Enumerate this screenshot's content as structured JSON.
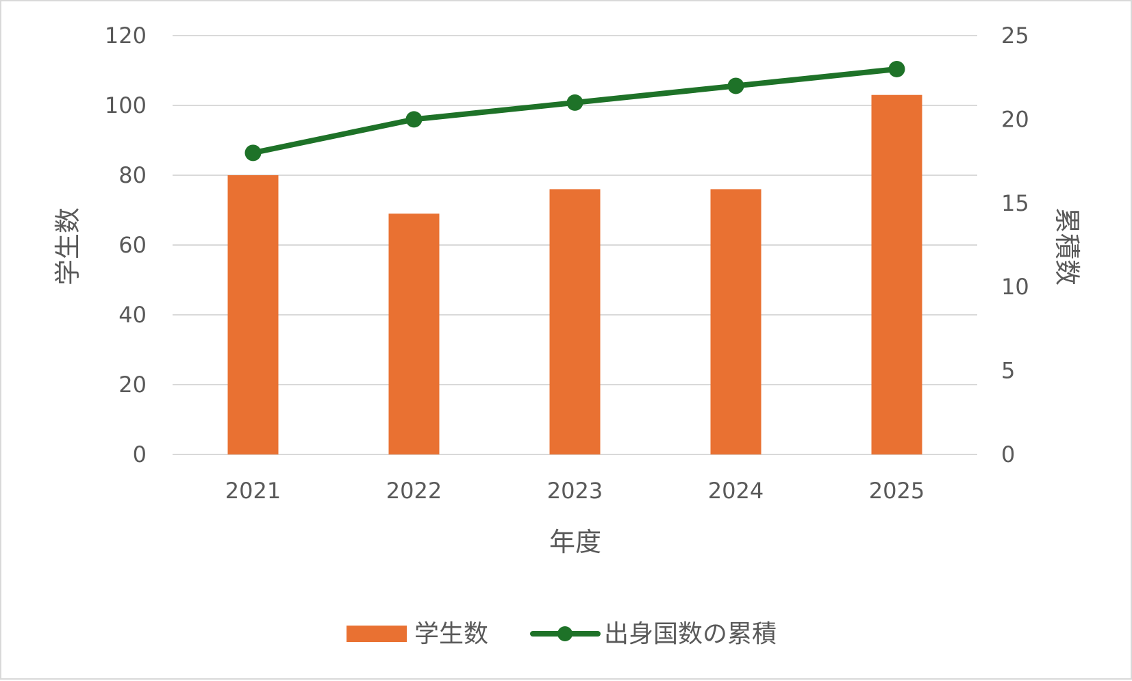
{
  "chart_data": {
    "type": "bar+line",
    "title": "",
    "categories": [
      "2021",
      "2022",
      "2023",
      "2024",
      "2025"
    ],
    "xlabel": "年度",
    "ylabel_left": "学生数",
    "ylabel_right": "累積数",
    "ylim_left": [
      0,
      120
    ],
    "ylim_right": [
      0,
      25
    ],
    "yticks_left": [
      "0",
      "20",
      "40",
      "60",
      "80",
      "100",
      "120"
    ],
    "yticks_right": [
      "0",
      "5",
      "10",
      "15",
      "20",
      "25"
    ],
    "grid": true,
    "legend_position": "bottom",
    "series": [
      {
        "name": "学生数",
        "type": "bar",
        "axis": "left",
        "color": "#e97132",
        "values": [
          80,
          69,
          76,
          76,
          103
        ]
      },
      {
        "name": "出身国数の累積",
        "type": "line",
        "axis": "right",
        "color": "#1e7228",
        "values": [
          18,
          20,
          21,
          22,
          23
        ]
      }
    ]
  }
}
